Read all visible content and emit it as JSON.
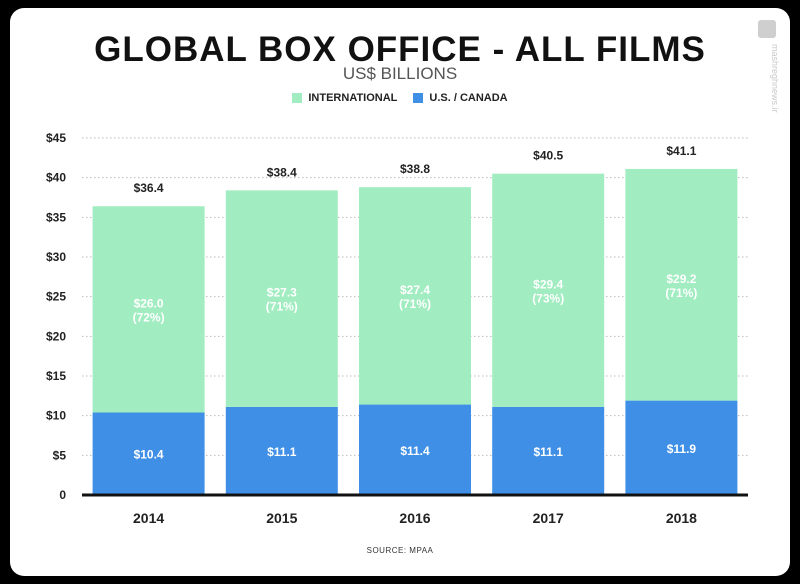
{
  "watermark": "mashreghnews.ir",
  "colors": {
    "international": "#a1ecc0",
    "us_canada": "#3f8fe6",
    "axis": "#111111",
    "grid": "#bbbbbb"
  },
  "chart_data": {
    "type": "bar",
    "stacked": true,
    "title": "GLOBAL BOX OFFICE - ALL FILMS",
    "subtitle": "US$ BILLIONS",
    "legend": [
      "INTERNATIONAL",
      "U.S. / CANADA"
    ],
    "legend_placement": "top-center",
    "source": "SOURCE: MPAA",
    "categories": [
      "2014",
      "2015",
      "2016",
      "2017",
      "2018"
    ],
    "series": [
      {
        "name": "U.S. / CANADA",
        "values": [
          10.4,
          11.1,
          11.4,
          11.1,
          11.9
        ],
        "labels": [
          "$10.4",
          "$11.1",
          "$11.4",
          "$11.1",
          "$11.9"
        ]
      },
      {
        "name": "INTERNATIONAL",
        "values": [
          26.0,
          27.3,
          27.4,
          29.4,
          29.2
        ],
        "labels": [
          "$26.0",
          "$27.3",
          "$27.4",
          "$29.4",
          "$29.2"
        ],
        "share_labels": [
          "(72%)",
          "(71%)",
          "(71%)",
          "(73%)",
          "(71%)"
        ]
      }
    ],
    "totals": [
      36.4,
      38.4,
      38.8,
      40.5,
      41.1
    ],
    "total_labels": [
      "$36.4",
      "$38.4",
      "$38.8",
      "$40.5",
      "$41.1"
    ],
    "ylim": [
      0,
      45
    ],
    "yticks": [
      0,
      5,
      10,
      15,
      20,
      25,
      30,
      35,
      40,
      45
    ],
    "ytick_labels": [
      "0",
      "$5",
      "$10",
      "$15",
      "$20",
      "$25",
      "$30",
      "$35",
      "$40",
      "$45"
    ],
    "grid": true
  }
}
